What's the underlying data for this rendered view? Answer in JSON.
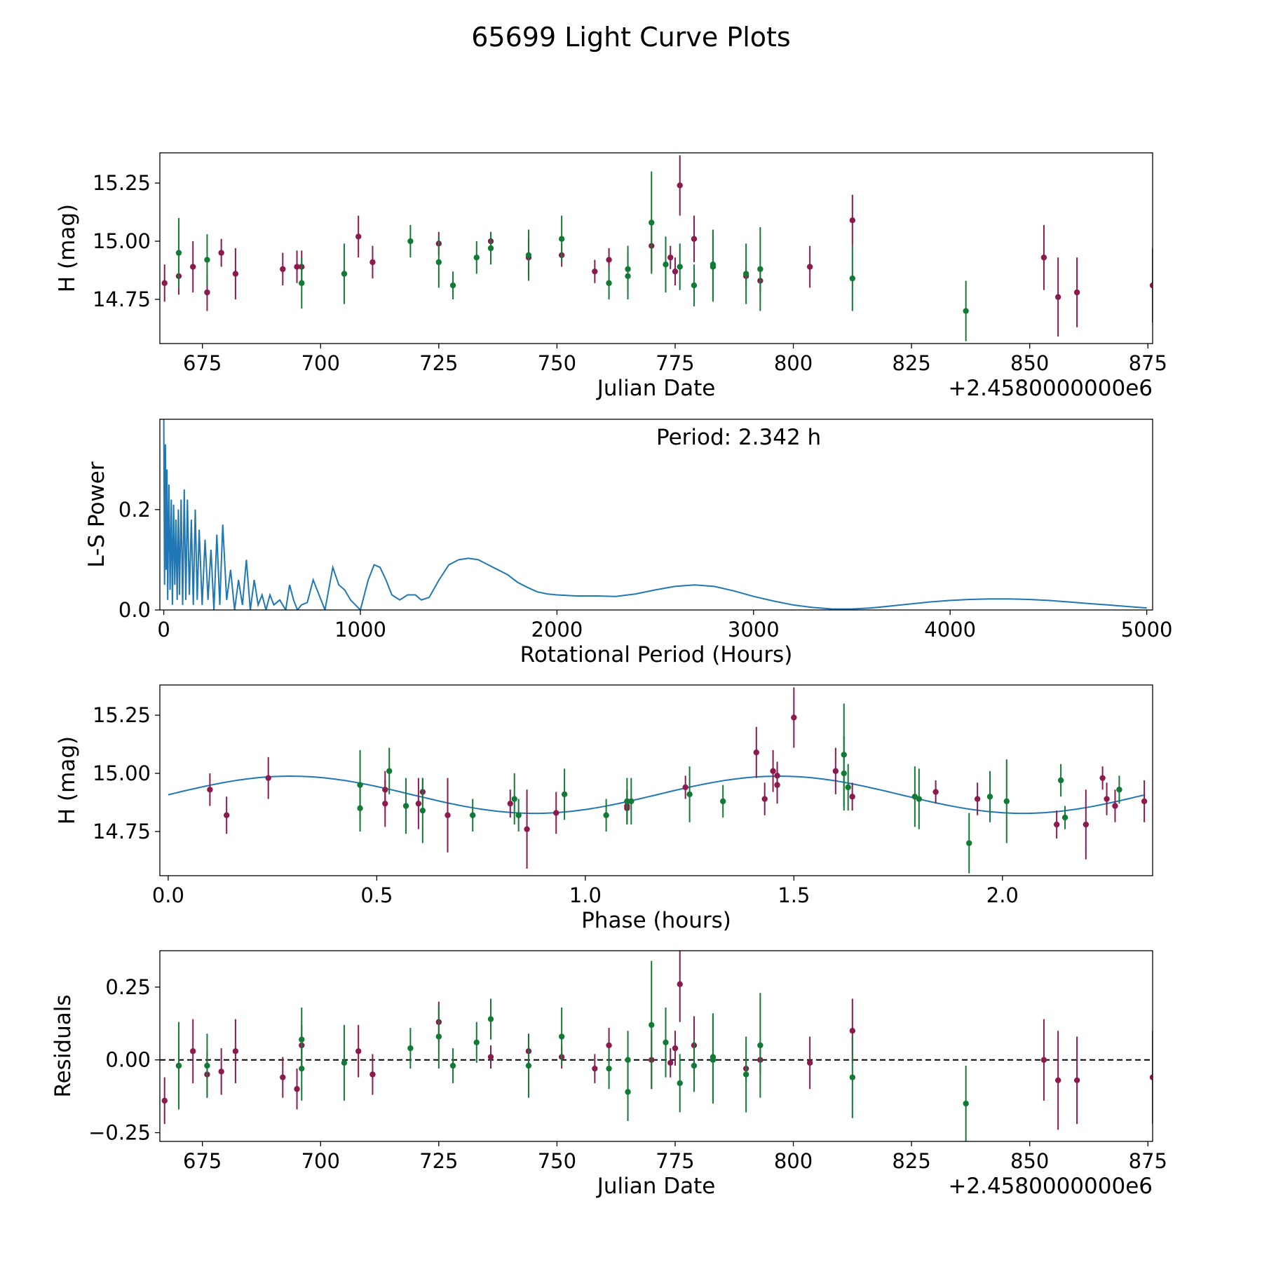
{
  "colors": {
    "red": "#8b1a4f",
    "green": "#137a36",
    "line": "#1f77b4",
    "frame": "#000000"
  },
  "chart_data": {
    "title": "65699 Light Curve Plots",
    "panels": [
      {
        "id": "lc",
        "type": "scatter",
        "xlabel": "Julian Date",
        "ylabel": "H (mag)",
        "offset_label": "+2.4580000000e6",
        "xlim": [
          666,
          876
        ],
        "ylim": [
          14.56,
          15.38
        ],
        "xticks": [
          675,
          700,
          725,
          750,
          775,
          800,
          825,
          850,
          875
        ],
        "xtick_labels": [
          "675",
          "700",
          "725",
          "750",
          "775",
          "800",
          "825",
          "850",
          "875"
        ],
        "yticks": [
          14.75,
          15.0,
          15.25
        ],
        "ytick_labels": [
          "14.75",
          "15.00",
          "15.25"
        ],
        "series": [
          {
            "name": "red",
            "color": "#8b1a4f",
            "x": [
              667.0,
              670.0,
              673.0,
              676.0,
              679.0,
              682.0,
              692.0,
              695.0,
              696.0,
              708.0,
              711.0,
              725.0,
              736.0,
              744.0,
              751.0,
              758.0,
              761.0,
              770.0,
              774.0,
              775.0,
              776.0,
              779.0,
              790.0,
              793.0,
              803.5,
              812.5,
              853.0,
              856.0,
              860.0,
              876.0
            ],
            "y": [
              14.82,
              14.85,
              14.89,
              14.78,
              14.95,
              14.86,
              14.88,
              14.89,
              14.89,
              15.02,
              14.91,
              14.99,
              15.0,
              14.93,
              14.94,
              14.87,
              14.92,
              14.98,
              14.93,
              14.87,
              15.24,
              15.01,
              14.85,
              14.83,
              14.89,
              15.09,
              14.93,
              14.76,
              14.78,
              14.81
            ],
            "err": [
              0.08,
              0.08,
              0.11,
              0.08,
              0.06,
              0.11,
              0.07,
              0.07,
              0.07,
              0.09,
              0.07,
              0.05,
              0.04,
              0.08,
              0.05,
              0.05,
              0.05,
              0.11,
              0.05,
              0.06,
              0.13,
              0.1,
              0.04,
              0.05,
              0.09,
              0.11,
              0.14,
              0.17,
              0.15,
              0.16
            ]
          },
          {
            "name": "green",
            "color": "#137a36",
            "x": [
              670.0,
              676.0,
              696.0,
              705.0,
              719.0,
              725.0,
              728.0,
              733.0,
              736.0,
              744.0,
              751.0,
              761.0,
              765.0,
              765.0,
              770.0,
              773.0,
              776.0,
              779.0,
              783.0,
              783.0,
              790.0,
              793.0,
              812.5,
              836.5
            ],
            "y": [
              14.95,
              14.92,
              14.82,
              14.86,
              15.0,
              14.91,
              14.81,
              14.93,
              14.97,
              14.94,
              15.01,
              14.82,
              14.85,
              14.88,
              15.08,
              14.9,
              14.89,
              14.81,
              14.89,
              14.9,
              14.86,
              14.88,
              14.84,
              14.7
            ],
            "err": [
              0.15,
              0.11,
              0.11,
              0.13,
              0.07,
              0.11,
              0.06,
              0.07,
              0.07,
              0.11,
              0.1,
              0.07,
              0.1,
              0.1,
              0.22,
              0.12,
              0.1,
              0.09,
              0.15,
              0.15,
              0.13,
              0.18,
              0.14,
              0.13
            ]
          }
        ]
      },
      {
        "id": "ls",
        "type": "line",
        "xlabel": "Rotational Period (Hours)",
        "ylabel": "L-S Power",
        "annotation": "Period: 2.342 h",
        "xlim": [
          -20,
          5030
        ],
        "ylim": [
          0,
          0.38
        ],
        "xticks": [
          0,
          1000,
          2000,
          3000,
          4000,
          5000
        ],
        "xtick_labels": [
          "0",
          "1000",
          "2000",
          "3000",
          "4000",
          "5000"
        ],
        "yticks": [
          0.0,
          0.2
        ],
        "ytick_labels": [
          "0.0",
          "0.2"
        ],
        "series": [
          {
            "name": "periodogram",
            "color": "#1f77b4",
            "x": [
              0,
              4,
              8,
              12,
              16,
              20,
              26,
              32,
              38,
              44,
              50,
              56,
              62,
              68,
              74,
              80,
              88,
              96,
              104,
              112,
              120,
              130,
              140,
              150,
              160,
              170,
              180,
              195,
              210,
              225,
              240,
              255,
              270,
              285,
              300,
              320,
              340,
              360,
              380,
              400,
              420,
              440,
              460,
              480,
              500,
              520,
              540,
              560,
              590,
              620,
              640,
              660,
              680,
              700,
              730,
              760,
              790,
              820,
              860,
              890,
              920,
              950,
              1000,
              1040,
              1070,
              1100,
              1130,
              1160,
              1200,
              1240,
              1280,
              1310,
              1350,
              1400,
              1450,
              1500,
              1550,
              1600,
              1650,
              1700,
              1750,
              1800,
              1850,
              1900,
              1950,
              2000,
              2100,
              2200,
              2300,
              2400,
              2500,
              2600,
              2700,
              2800,
              2900,
              3000,
              3100,
              3200,
              3300,
              3400,
              3500,
              3600,
              3700,
              3800,
              3900,
              4000,
              4100,
              4200,
              4300,
              4400,
              4500,
              4600,
              4700,
              4800,
              4900,
              5000
            ],
            "y": [
              0.38,
              0.05,
              0.33,
              0.08,
              0.28,
              0.02,
              0.25,
              0.04,
              0.22,
              0.01,
              0.21,
              0.05,
              0.18,
              0.02,
              0.2,
              0.03,
              0.22,
              0.01,
              0.24,
              0.02,
              0.22,
              0.03,
              0.18,
              0.01,
              0.2,
              0.02,
              0.16,
              0.01,
              0.14,
              0.02,
              0.12,
              0.0,
              0.15,
              0.01,
              0.17,
              0.02,
              0.08,
              0.0,
              0.06,
              0.01,
              0.1,
              0.0,
              0.06,
              0.01,
              0.03,
              0.0,
              0.03,
              0.01,
              0.02,
              0.0,
              0.05,
              0.02,
              0.0,
              0.01,
              0.015,
              0.06,
              0.03,
              0.0,
              0.085,
              0.05,
              0.04,
              0.02,
              0.0,
              0.06,
              0.09,
              0.085,
              0.06,
              0.03,
              0.02,
              0.03,
              0.03,
              0.02,
              0.025,
              0.06,
              0.09,
              0.1,
              0.103,
              0.1,
              0.09,
              0.08,
              0.07,
              0.055,
              0.045,
              0.036,
              0.032,
              0.03,
              0.028,
              0.028,
              0.027,
              0.032,
              0.04,
              0.047,
              0.05,
              0.047,
              0.038,
              0.027,
              0.018,
              0.01,
              0.005,
              0.002,
              0.002,
              0.004,
              0.008,
              0.012,
              0.016,
              0.019,
              0.021,
              0.022,
              0.022,
              0.021,
              0.019,
              0.016,
              0.013,
              0.01,
              0.007,
              0.004
            ]
          }
        ]
      },
      {
        "id": "phase",
        "type": "scatter",
        "xlabel": "Phase (hours)",
        "ylabel": "H (mag)",
        "xlim": [
          -0.02,
          2.36
        ],
        "ylim": [
          14.56,
          15.38
        ],
        "xticks": [
          0.0,
          0.5,
          1.0,
          1.5,
          2.0
        ],
        "xtick_labels": [
          "0.0",
          "0.5",
          "1.0",
          "1.5",
          "2.0"
        ],
        "yticks": [
          14.75,
          15.0,
          15.25
        ],
        "ytick_labels": [
          "14.75",
          "15.00",
          "15.25"
        ],
        "model": {
          "name": "fit",
          "color": "#1f77b4",
          "mean": 14.908,
          "amplitude": 0.08,
          "period": 1.171,
          "phase_shift": 0.0
        },
        "series": [
          {
            "name": "red",
            "color": "#8b1a4f",
            "x": [
              0.1,
              0.14,
              0.24,
              0.52,
              0.52,
              0.6,
              0.61,
              0.67,
              0.82,
              0.86,
              0.93,
              1.1,
              1.1,
              1.24,
              1.41,
              1.43,
              1.45,
              1.46,
              1.46,
              1.5,
              1.6,
              1.64,
              1.84,
              1.94,
              2.13,
              2.2,
              2.24,
              2.25,
              2.27,
              2.34
            ],
            "y": [
              14.93,
              14.82,
              14.98,
              14.93,
              14.87,
              14.87,
              14.92,
              14.82,
              14.87,
              14.76,
              14.83,
              14.85,
              14.86,
              14.94,
              15.09,
              14.89,
              15.01,
              14.99,
              14.95,
              15.24,
              15.01,
              14.9,
              14.92,
              14.89,
              14.78,
              14.78,
              14.98,
              14.89,
              14.86,
              14.88
            ],
            "err": [
              0.07,
              0.08,
              0.09,
              0.08,
              0.1,
              0.11,
              0.06,
              0.16,
              0.06,
              0.17,
              0.09,
              0.07,
              0.07,
              0.05,
              0.11,
              0.07,
              0.09,
              0.06,
              0.08,
              0.13,
              0.1,
              0.06,
              0.05,
              0.07,
              0.06,
              0.15,
              0.05,
              0.07,
              0.07,
              0.09
            ]
          },
          {
            "name": "green",
            "color": "#137a36",
            "x": [
              0.46,
              0.46,
              0.53,
              0.57,
              0.61,
              0.73,
              0.83,
              0.84,
              0.95,
              1.05,
              1.1,
              1.11,
              1.25,
              1.33,
              1.62,
              1.62,
              1.63,
              1.79,
              1.8,
              1.97,
              2.01,
              2.14,
              2.15,
              2.28,
              1.92
            ],
            "y": [
              14.95,
              14.85,
              15.01,
              14.86,
              14.84,
              14.82,
              14.89,
              14.82,
              14.91,
              14.82,
              14.88,
              14.88,
              14.91,
              14.88,
              15.08,
              15.0,
              14.94,
              14.9,
              14.89,
              14.9,
              14.88,
              14.97,
              14.81,
              14.93,
              14.7
            ],
            "err": [
              0.15,
              0.1,
              0.1,
              0.12,
              0.14,
              0.07,
              0.11,
              0.07,
              0.11,
              0.07,
              0.1,
              0.1,
              0.12,
              0.07,
              0.22,
              0.16,
              0.1,
              0.13,
              0.13,
              0.11,
              0.18,
              0.07,
              0.05,
              0.06,
              0.13
            ]
          }
        ]
      },
      {
        "id": "res",
        "type": "scatter",
        "xlabel": "Julian Date",
        "ylabel": "Residuals",
        "offset_label": "+2.4580000000e6",
        "xlim": [
          666,
          876
        ],
        "ylim": [
          -0.28,
          0.375
        ],
        "xticks": [
          675,
          700,
          725,
          750,
          775,
          800,
          825,
          850,
          875
        ],
        "xtick_labels": [
          "675",
          "700",
          "725",
          "750",
          "775",
          "800",
          "825",
          "850",
          "875"
        ],
        "yticks": [
          -0.25,
          0.0,
          0.25
        ],
        "ytick_labels": [
          "−0.25",
          "0.00",
          "0.25"
        ],
        "reference_line": 0.0,
        "series": [
          {
            "name": "red",
            "color": "#8b1a4f",
            "x": [
              667.0,
              670.0,
              673.0,
              676.0,
              679.0,
              682.0,
              692.0,
              695.0,
              696.0,
              708.0,
              711.0,
              725.0,
              736.0,
              744.0,
              751.0,
              758.0,
              761.0,
              770.0,
              774.0,
              775.0,
              776.0,
              779.0,
              790.0,
              793.0,
              803.5,
              812.5,
              853.0,
              856.0,
              860.0,
              876.0
            ],
            "y": [
              -0.14,
              -0.02,
              0.03,
              -0.05,
              -0.04,
              0.03,
              -0.06,
              -0.1,
              0.05,
              0.03,
              -0.05,
              0.13,
              0.01,
              0.03,
              0.01,
              -0.03,
              0.05,
              0.0,
              -0.01,
              0.04,
              0.26,
              0.05,
              -0.03,
              0.0,
              -0.01,
              0.1,
              0.0,
              -0.07,
              -0.07,
              -0.06
            ],
            "err": [
              0.08,
              0.08,
              0.11,
              0.08,
              0.08,
              0.11,
              0.07,
              0.07,
              0.07,
              0.09,
              0.07,
              0.07,
              0.04,
              0.06,
              0.04,
              0.05,
              0.06,
              0.1,
              0.05,
              0.06,
              0.13,
              0.1,
              0.04,
              0.05,
              0.09,
              0.11,
              0.14,
              0.17,
              0.15,
              0.16
            ]
          },
          {
            "name": "green",
            "color": "#137a36",
            "x": [
              670.0,
              676.0,
              696.0,
              696.0,
              705.0,
              719.0,
              725.0,
              728.0,
              733.0,
              736.0,
              744.0,
              751.0,
              761.0,
              765.0,
              765.0,
              770.0,
              773.0,
              776.0,
              779.0,
              783.0,
              783.0,
              790.0,
              793.0,
              812.5,
              836.5
            ],
            "y": [
              -0.02,
              -0.02,
              0.07,
              -0.03,
              -0.01,
              0.04,
              0.08,
              -0.02,
              0.06,
              0.14,
              -0.02,
              0.08,
              -0.03,
              0.0,
              -0.11,
              0.12,
              0.06,
              -0.08,
              -0.02,
              0.0,
              0.01,
              -0.05,
              0.05,
              -0.06,
              -0.15
            ],
            "err": [
              0.15,
              0.11,
              0.11,
              0.11,
              0.13,
              0.07,
              0.11,
              0.06,
              0.07,
              0.07,
              0.11,
              0.1,
              0.07,
              0.1,
              0.1,
              0.22,
              0.12,
              0.1,
              0.09,
              0.15,
              0.15,
              0.13,
              0.18,
              0.14,
              0.13
            ]
          }
        ]
      }
    ]
  }
}
